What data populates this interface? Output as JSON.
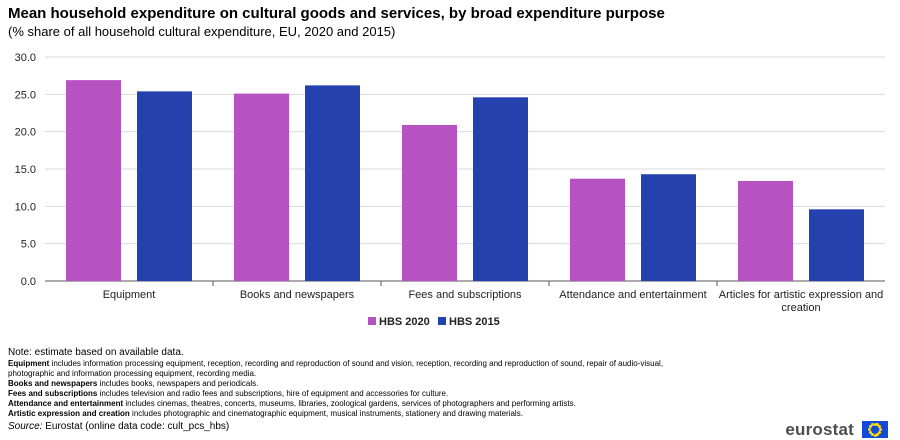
{
  "header": {
    "title": "Mean household expenditure on cultural goods and services, by broad expenditure purpose",
    "subtitle": "(% share of all household  cultural expenditure,  EU, 2020 and 2015)"
  },
  "chart_data": {
    "type": "bar",
    "title": "Mean household expenditure on cultural goods and services, by broad expenditure purpose",
    "subtitle": "(% share of all household  cultural expenditure,  EU, 2020 and 2015)",
    "categories": [
      "Equipment",
      "Books and newspapers",
      "Fees and subscriptions",
      "Attendance and entertainment",
      "Articles for artistic expression and creation"
    ],
    "category_lines": [
      [
        "Equipment"
      ],
      [
        "Books and newspapers"
      ],
      [
        "Fees and subscriptions"
      ],
      [
        "Attendance and entertainment"
      ],
      [
        "Articles for artistic expression and",
        "creation"
      ]
    ],
    "series": [
      {
        "name": "HBS 2020",
        "color": "#b652c2",
        "values": [
          26.9,
          25.1,
          20.9,
          13.7,
          13.4
        ]
      },
      {
        "name": "HBS 2015",
        "color": "#2541ad",
        "values": [
          25.4,
          26.2,
          24.6,
          14.3,
          9.6
        ]
      }
    ],
    "ylim": [
      0,
      30
    ],
    "yticks": [
      0,
      5,
      10,
      15,
      20,
      25,
      30
    ],
    "ytick_labels": [
      "0.0",
      "5.0",
      "10.0",
      "15.0",
      "20.0",
      "25.0",
      "30.0"
    ],
    "grid": true,
    "legend": "bottom-center",
    "xlabel": "",
    "ylabel": ""
  },
  "notes": {
    "main": "Note: estimate based on available data.",
    "lines": [
      {
        "bold": "Equipment",
        "text": " includes information  processing equipment,  reception,  recording and reproduction  of sound and vision,  reception,  recording and reproduction  of sound,  repair of audio-visual,"
      },
      {
        "bold": "",
        "text": "photographic  and information  processing equipment,  recording media."
      },
      {
        "bold": "Books and newspapers",
        "text": " includes books, newspapers  and periodicals."
      },
      {
        "bold": "Fees and subscriptions",
        "text": "  includes television  and radio fees and subscriptions, hire of equipment  and accessories for culture."
      },
      {
        "bold": "Attendance and entertainment",
        "text": " includes cinemas,  theatres,  concerts,  museums,  libraries,  zoological gardens,  services of photographers  and performing  artists."
      },
      {
        "bold": "Artistic  expression and creation",
        "text": " includes photographic  and cinematographic  equipment,  musical instruments,  stationery and drawing materials."
      }
    ],
    "source_label": "Source:",
    "source_text": " Eurostat  (online data code:  cult_pcs_hbs)"
  },
  "branding": {
    "logo_text": "eurostat",
    "flag_color": "#114bd8",
    "star_color": "#ffdd00"
  }
}
